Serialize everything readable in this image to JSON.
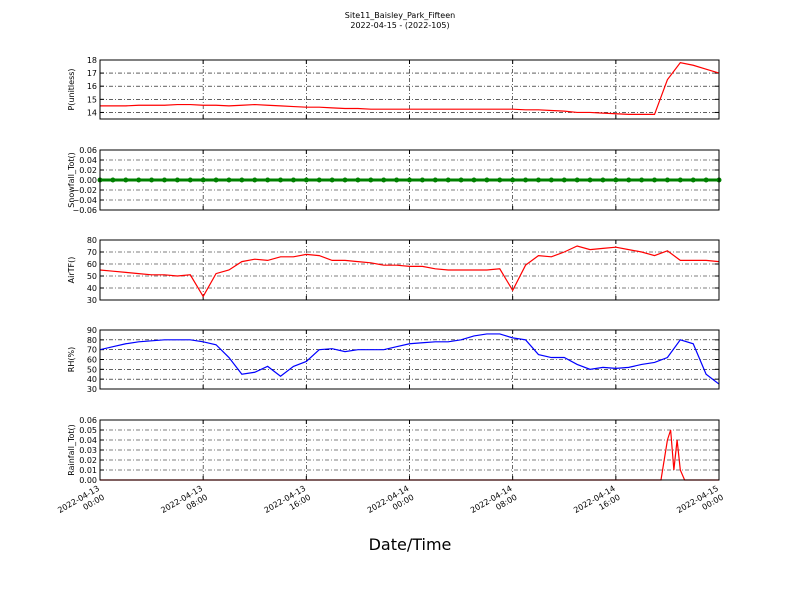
{
  "title": "Site11_Baisley_Park_Fifteen",
  "subtitle": "2022-04-15 - (2022-105)",
  "xlabel": "Date/Time",
  "chart_data": [
    {
      "type": "line",
      "ylabel": "P(unitless)",
      "color": "#ff0000",
      "grid": true,
      "x": [
        "2022-04-13 00:00",
        "2022-04-13 01:00",
        "2022-04-13 02:00",
        "2022-04-13 03:00",
        "2022-04-13 04:00",
        "2022-04-13 05:00",
        "2022-04-13 06:00",
        "2022-04-13 07:00",
        "2022-04-13 08:00",
        "2022-04-13 09:00",
        "2022-04-13 10:00",
        "2022-04-13 11:00",
        "2022-04-13 12:00",
        "2022-04-13 13:00",
        "2022-04-13 14:00",
        "2022-04-13 15:00",
        "2022-04-13 16:00",
        "2022-04-13 17:00",
        "2022-04-13 18:00",
        "2022-04-13 19:00",
        "2022-04-13 20:00",
        "2022-04-13 21:00",
        "2022-04-13 22:00",
        "2022-04-13 23:00",
        "2022-04-14 00:00",
        "2022-04-14 01:00",
        "2022-04-14 02:00",
        "2022-04-14 03:00",
        "2022-04-14 04:00",
        "2022-04-14 05:00",
        "2022-04-14 06:00",
        "2022-04-14 07:00",
        "2022-04-14 08:00",
        "2022-04-14 09:00",
        "2022-04-14 10:00",
        "2022-04-14 11:00",
        "2022-04-14 12:00",
        "2022-04-14 13:00",
        "2022-04-14 14:00",
        "2022-04-14 15:00",
        "2022-04-14 16:00",
        "2022-04-14 17:00",
        "2022-04-14 18:00",
        "2022-04-14 19:00",
        "2022-04-14 20:00",
        "2022-04-14 21:00",
        "2022-04-14 22:00",
        "2022-04-14 23:00",
        "2022-04-15 00:00"
      ],
      "values": [
        14.5,
        14.5,
        14.5,
        14.55,
        14.55,
        14.55,
        14.6,
        14.6,
        14.55,
        14.55,
        14.5,
        14.55,
        14.6,
        14.55,
        14.5,
        14.45,
        14.4,
        14.4,
        14.35,
        14.3,
        14.3,
        14.25,
        14.25,
        14.25,
        14.25,
        14.25,
        14.25,
        14.25,
        14.25,
        14.25,
        14.25,
        14.25,
        14.25,
        14.2,
        14.2,
        14.15,
        14.1,
        14.0,
        14.0,
        13.95,
        13.9,
        13.85,
        13.85,
        13.85,
        16.5,
        17.8,
        17.6,
        17.3,
        17.0
      ],
      "xlim": [
        "2022-04-13 00:00",
        "2022-04-15 00:00"
      ],
      "xticks": [
        "2022-04-13 00:00",
        "2022-04-13 08:00",
        "2022-04-13 16:00",
        "2022-04-14 00:00",
        "2022-04-14 08:00",
        "2022-04-14 16:00",
        "2022-04-15 00:00"
      ],
      "ylim": [
        13.5,
        18
      ],
      "yticks": [
        14,
        15,
        16,
        17,
        18
      ]
    },
    {
      "type": "line",
      "ylabel": "Snowfall_Tot()",
      "color": "#008000",
      "marker": true,
      "grid": true,
      "x": [
        "2022-04-13 00:00",
        "2022-04-13 01:00",
        "2022-04-13 02:00",
        "2022-04-13 03:00",
        "2022-04-13 04:00",
        "2022-04-13 05:00",
        "2022-04-13 06:00",
        "2022-04-13 07:00",
        "2022-04-13 08:00",
        "2022-04-13 09:00",
        "2022-04-13 10:00",
        "2022-04-13 11:00",
        "2022-04-13 12:00",
        "2022-04-13 13:00",
        "2022-04-13 14:00",
        "2022-04-13 15:00",
        "2022-04-13 16:00",
        "2022-04-13 17:00",
        "2022-04-13 18:00",
        "2022-04-13 19:00",
        "2022-04-13 20:00",
        "2022-04-13 21:00",
        "2022-04-13 22:00",
        "2022-04-13 23:00",
        "2022-04-14 00:00",
        "2022-04-14 01:00",
        "2022-04-14 02:00",
        "2022-04-14 03:00",
        "2022-04-14 04:00",
        "2022-04-14 05:00",
        "2022-04-14 06:00",
        "2022-04-14 07:00",
        "2022-04-14 08:00",
        "2022-04-14 09:00",
        "2022-04-14 10:00",
        "2022-04-14 11:00",
        "2022-04-14 12:00",
        "2022-04-14 13:00",
        "2022-04-14 14:00",
        "2022-04-14 15:00",
        "2022-04-14 16:00",
        "2022-04-14 17:00",
        "2022-04-14 18:00",
        "2022-04-14 19:00",
        "2022-04-14 20:00",
        "2022-04-14 21:00",
        "2022-04-14 22:00",
        "2022-04-14 23:00",
        "2022-04-15 00:00"
      ],
      "values": [
        0,
        0,
        0,
        0,
        0,
        0,
        0,
        0,
        0,
        0,
        0,
        0,
        0,
        0,
        0,
        0,
        0,
        0,
        0,
        0,
        0,
        0,
        0,
        0,
        0,
        0,
        0,
        0,
        0,
        0,
        0,
        0,
        0,
        0,
        0,
        0,
        0,
        0,
        0,
        0,
        0,
        0,
        0,
        0,
        0,
        0,
        0,
        0,
        0
      ],
      "xlim": [
        "2022-04-13 00:00",
        "2022-04-15 00:00"
      ],
      "xticks": [
        "2022-04-13 00:00",
        "2022-04-13 08:00",
        "2022-04-13 16:00",
        "2022-04-14 00:00",
        "2022-04-14 08:00",
        "2022-04-14 16:00",
        "2022-04-15 00:00"
      ],
      "ylim": [
        -0.06,
        0.06
      ],
      "yticks": [
        {
          "value": -0.06,
          "label": "−0.06"
        },
        {
          "value": -0.04,
          "label": "−0.04"
        },
        {
          "value": -0.02,
          "label": "−0.02"
        },
        {
          "value": 0,
          "label": "0.00"
        },
        {
          "value": 0.02,
          "label": "0.02"
        },
        {
          "value": 0.04,
          "label": "0.04"
        },
        {
          "value": 0.06,
          "label": "0.06"
        }
      ]
    },
    {
      "type": "line",
      "ylabel": "AirTF()",
      "color": "#ff0000",
      "grid": true,
      "x": [
        "2022-04-13 00:00",
        "2022-04-13 01:00",
        "2022-04-13 02:00",
        "2022-04-13 03:00",
        "2022-04-13 04:00",
        "2022-04-13 05:00",
        "2022-04-13 06:00",
        "2022-04-13 07:00",
        "2022-04-13 08:00",
        "2022-04-13 09:00",
        "2022-04-13 10:00",
        "2022-04-13 11:00",
        "2022-04-13 12:00",
        "2022-04-13 13:00",
        "2022-04-13 14:00",
        "2022-04-13 15:00",
        "2022-04-13 16:00",
        "2022-04-13 17:00",
        "2022-04-13 18:00",
        "2022-04-13 19:00",
        "2022-04-13 20:00",
        "2022-04-13 21:00",
        "2022-04-13 22:00",
        "2022-04-13 23:00",
        "2022-04-14 00:00",
        "2022-04-14 01:00",
        "2022-04-14 02:00",
        "2022-04-14 03:00",
        "2022-04-14 04:00",
        "2022-04-14 05:00",
        "2022-04-14 06:00",
        "2022-04-14 07:00",
        "2022-04-14 08:00",
        "2022-04-14 09:00",
        "2022-04-14 10:00",
        "2022-04-14 11:00",
        "2022-04-14 12:00",
        "2022-04-14 13:00",
        "2022-04-14 14:00",
        "2022-04-14 15:00",
        "2022-04-14 16:00",
        "2022-04-14 17:00",
        "2022-04-14 18:00",
        "2022-04-14 19:00",
        "2022-04-14 20:00",
        "2022-04-14 21:00",
        "2022-04-14 22:00",
        "2022-04-14 23:00",
        "2022-04-15 00:00"
      ],
      "values": [
        55,
        54,
        53,
        52,
        51,
        51,
        50,
        51,
        33,
        52,
        55,
        62,
        64,
        63,
        66,
        66,
        68,
        67,
        63,
        63,
        62,
        61,
        59,
        59,
        58,
        58,
        56,
        55,
        55,
        55,
        55,
        56,
        38,
        59,
        67,
        66,
        70,
        75,
        72,
        73,
        74,
        72,
        70,
        67,
        71,
        63,
        63,
        63,
        62
      ],
      "xlim": [
        "2022-04-13 00:00",
        "2022-04-15 00:00"
      ],
      "xticks": [
        "2022-04-13 00:00",
        "2022-04-13 08:00",
        "2022-04-13 16:00",
        "2022-04-14 00:00",
        "2022-04-14 08:00",
        "2022-04-14 16:00",
        "2022-04-15 00:00"
      ],
      "ylim": [
        30,
        80
      ],
      "yticks": [
        30,
        40,
        50,
        60,
        70,
        80
      ]
    },
    {
      "type": "line",
      "ylabel": "RH(%)",
      "color": "#0000ff",
      "grid": true,
      "x": [
        "2022-04-13 00:00",
        "2022-04-13 01:00",
        "2022-04-13 02:00",
        "2022-04-13 03:00",
        "2022-04-13 04:00",
        "2022-04-13 05:00",
        "2022-04-13 06:00",
        "2022-04-13 07:00",
        "2022-04-13 08:00",
        "2022-04-13 09:00",
        "2022-04-13 10:00",
        "2022-04-13 11:00",
        "2022-04-13 12:00",
        "2022-04-13 13:00",
        "2022-04-13 14:00",
        "2022-04-13 15:00",
        "2022-04-13 16:00",
        "2022-04-13 17:00",
        "2022-04-13 18:00",
        "2022-04-13 19:00",
        "2022-04-13 20:00",
        "2022-04-13 21:00",
        "2022-04-13 22:00",
        "2022-04-13 23:00",
        "2022-04-14 00:00",
        "2022-04-14 01:00",
        "2022-04-14 02:00",
        "2022-04-14 03:00",
        "2022-04-14 04:00",
        "2022-04-14 05:00",
        "2022-04-14 06:00",
        "2022-04-14 07:00",
        "2022-04-14 08:00",
        "2022-04-14 09:00",
        "2022-04-14 10:00",
        "2022-04-14 11:00",
        "2022-04-14 12:00",
        "2022-04-14 13:00",
        "2022-04-14 14:00",
        "2022-04-14 15:00",
        "2022-04-14 16:00",
        "2022-04-14 17:00",
        "2022-04-14 18:00",
        "2022-04-14 19:00",
        "2022-04-14 20:00",
        "2022-04-14 21:00",
        "2022-04-14 22:00",
        "2022-04-14 23:00",
        "2022-04-15 00:00"
      ],
      "values": [
        70,
        73,
        76,
        78,
        79,
        80,
        80,
        80,
        78,
        75,
        62,
        45,
        47,
        53,
        43,
        53,
        58,
        70,
        71,
        68,
        70,
        70,
        70,
        73,
        76,
        77,
        78,
        78,
        80,
        84,
        86,
        86,
        82,
        80,
        65,
        62,
        62,
        55,
        50,
        52,
        51,
        52,
        55,
        57,
        62,
        80,
        76,
        45,
        35
      ],
      "xlim": [
        "2022-04-13 00:00",
        "2022-04-15 00:00"
      ],
      "xticks": [
        "2022-04-13 00:00",
        "2022-04-13 08:00",
        "2022-04-13 16:00",
        "2022-04-14 00:00",
        "2022-04-14 08:00",
        "2022-04-14 16:00",
        "2022-04-15 00:00"
      ],
      "ylim": [
        30,
        90
      ],
      "yticks": [
        30,
        40,
        50,
        60,
        70,
        80,
        90
      ]
    },
    {
      "type": "line",
      "ylabel": "Rainfall_Tot()",
      "color": "#ff0000",
      "grid": true,
      "x": [
        "2022-04-13 00:00",
        "2022-04-14 19:30",
        "2022-04-14 20:00",
        "2022-04-14 20:15",
        "2022-04-14 20:30",
        "2022-04-14 20:45",
        "2022-04-14 21:00",
        "2022-04-14 21:20",
        "2022-04-15 00:00"
      ],
      "values": [
        0,
        0,
        0.04,
        0.05,
        0.01,
        0.04,
        0.01,
        0,
        0
      ],
      "xlim": [
        "2022-04-13 00:00",
        "2022-04-15 00:00"
      ],
      "xticks": [
        "2022-04-13 00:00",
        "2022-04-13 08:00",
        "2022-04-13 16:00",
        "2022-04-14 00:00",
        "2022-04-14 08:00",
        "2022-04-14 16:00",
        "2022-04-15 00:00"
      ],
      "ylim": [
        0,
        0.06
      ],
      "yticks": [
        {
          "value": 0,
          "label": "0.00"
        },
        {
          "value": 0.01,
          "label": "0.01"
        },
        {
          "value": 0.02,
          "label": "0.02"
        },
        {
          "value": 0.03,
          "label": "0.03"
        },
        {
          "value": 0.04,
          "label": "0.04"
        },
        {
          "value": 0.05,
          "label": "0.05"
        },
        {
          "value": 0.06,
          "label": "0.06"
        }
      ]
    }
  ]
}
